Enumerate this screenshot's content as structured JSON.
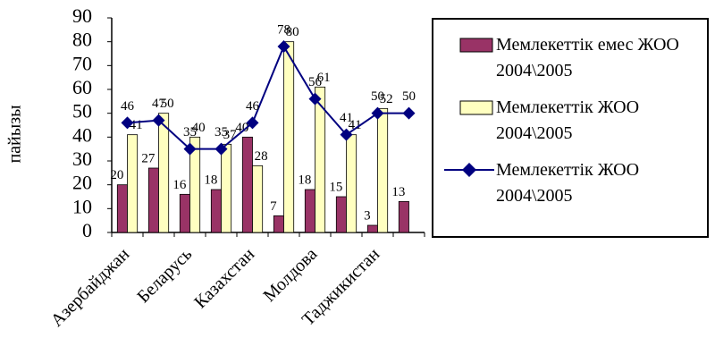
{
  "chart_data": {
    "type": "bar-line",
    "y_label": "пайызы",
    "categories": [
      "Азербайджан",
      null,
      "Беларусь",
      null,
      "Казахстан",
      null,
      "Молдова",
      null,
      "Таджикистан",
      null
    ],
    "series": [
      {
        "name": "Мемлекеттік емес ЖОО 2004\\2005",
        "type": "bar",
        "color": "#993366",
        "values": [
          20,
          27,
          16,
          18,
          40,
          7,
          18,
          15,
          3,
          13
        ]
      },
      {
        "name": "Мемлекеттік ЖОО 2004\\2005",
        "type": "bar",
        "color": "#ffffc0",
        "values": [
          41,
          50,
          40,
          37,
          28,
          80,
          61,
          41,
          52,
          null
        ]
      },
      {
        "name": "Мемлекеттік ЖОО 2004\\2005",
        "type": "line",
        "color": "#000080",
        "values": [
          46,
          47,
          35,
          35,
          46,
          78,
          56,
          41,
          50,
          50
        ]
      }
    ],
    "ylim": [
      0,
      90
    ],
    "yticks": [
      0,
      10,
      20,
      30,
      40,
      50,
      60,
      70,
      80,
      90
    ]
  }
}
